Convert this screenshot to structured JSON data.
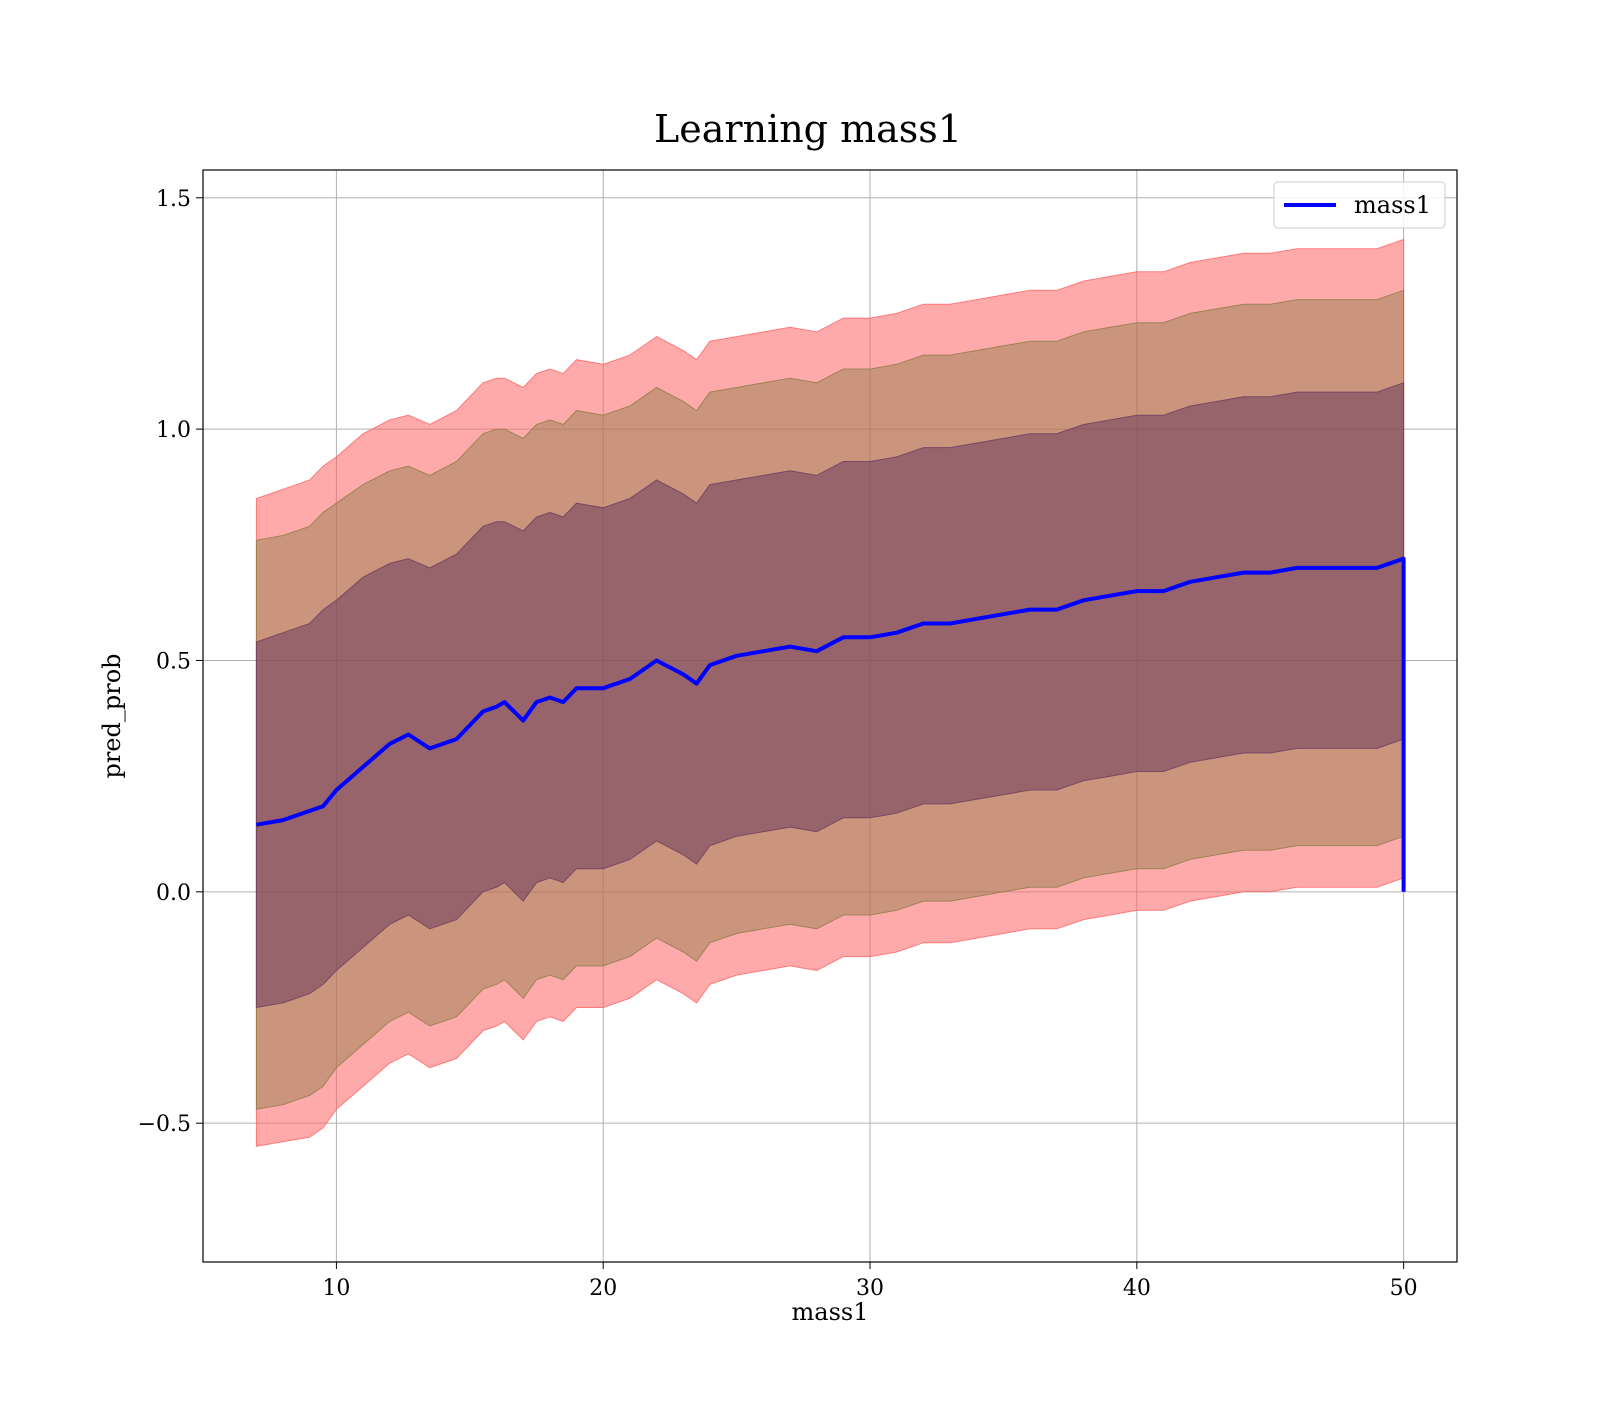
{
  "chart_data": {
    "type": "line",
    "title": "Learning mass1",
    "xlabel": "mass1",
    "ylabel": "pred_prob",
    "xlim": [
      5,
      52
    ],
    "ylim": [
      -0.8,
      1.56
    ],
    "xticks": [
      10,
      20,
      30,
      40,
      50
    ],
    "yticks": [
      -0.5,
      0.0,
      0.5,
      1.0,
      1.5
    ],
    "ytick_labels": [
      "−0.5",
      "0.0",
      "0.5",
      "1.0",
      "1.5"
    ],
    "grid": true,
    "legend_placement": "top-right",
    "x": [
      7,
      8,
      9,
      9.5,
      10,
      11,
      12,
      12.7,
      13.5,
      14.5,
      15.5,
      16,
      16.3,
      17,
      17.5,
      18,
      18.5,
      19,
      20,
      21,
      22,
      23,
      23.5,
      24,
      25,
      26,
      27,
      28,
      29,
      30,
      31,
      32,
      33,
      34,
      35,
      36,
      37,
      38,
      39,
      40,
      41,
      42,
      43,
      44,
      45,
      46,
      47,
      48,
      49,
      50
    ],
    "series": [
      {
        "name": "mass1",
        "color": "#0000ff",
        "values": [
          0.145,
          0.155,
          0.175,
          0.185,
          0.22,
          0.27,
          0.32,
          0.34,
          0.31,
          0.33,
          0.39,
          0.4,
          0.41,
          0.37,
          0.41,
          0.42,
          0.41,
          0.44,
          0.44,
          0.46,
          0.5,
          0.47,
          0.45,
          0.49,
          0.51,
          0.52,
          0.53,
          0.52,
          0.55,
          0.55,
          0.56,
          0.58,
          0.58,
          0.59,
          0.6,
          0.61,
          0.61,
          0.63,
          0.64,
          0.65,
          0.65,
          0.67,
          0.68,
          0.69,
          0.69,
          0.7,
          0.7,
          0.7,
          0.7,
          0.72
        ]
      }
    ],
    "bands": [
      {
        "color": "#ff6464",
        "opacity": 0.55,
        "upper": [
          0.85,
          0.87,
          0.89,
          0.92,
          0.94,
          0.99,
          1.02,
          1.03,
          1.01,
          1.04,
          1.1,
          1.11,
          1.11,
          1.09,
          1.12,
          1.13,
          1.12,
          1.15,
          1.14,
          1.16,
          1.2,
          1.17,
          1.15,
          1.19,
          1.2,
          1.21,
          1.22,
          1.21,
          1.24,
          1.24,
          1.25,
          1.27,
          1.27,
          1.28,
          1.29,
          1.3,
          1.3,
          1.32,
          1.33,
          1.34,
          1.34,
          1.36,
          1.37,
          1.38,
          1.38,
          1.39,
          1.39,
          1.39,
          1.39,
          1.41
        ],
        "lower": [
          -0.55,
          -0.54,
          -0.53,
          -0.51,
          -0.47,
          -0.42,
          -0.37,
          -0.35,
          -0.38,
          -0.36,
          -0.3,
          -0.29,
          -0.28,
          -0.32,
          -0.28,
          -0.27,
          -0.28,
          -0.25,
          -0.25,
          -0.23,
          -0.19,
          -0.22,
          -0.24,
          -0.2,
          -0.18,
          -0.17,
          -0.16,
          -0.17,
          -0.14,
          -0.14,
          -0.13,
          -0.11,
          -0.11,
          -0.1,
          -0.09,
          -0.08,
          -0.08,
          -0.06,
          -0.05,
          -0.04,
          -0.04,
          -0.02,
          -0.01,
          0.0,
          0.0,
          0.01,
          0.01,
          0.01,
          0.01,
          0.03
        ]
      },
      {
        "color": "#8c7d46",
        "opacity": 0.45,
        "upper": [
          0.76,
          0.77,
          0.79,
          0.82,
          0.84,
          0.88,
          0.91,
          0.92,
          0.9,
          0.93,
          0.99,
          1.0,
          1.0,
          0.98,
          1.01,
          1.02,
          1.01,
          1.04,
          1.03,
          1.05,
          1.09,
          1.06,
          1.04,
          1.08,
          1.09,
          1.1,
          1.11,
          1.1,
          1.13,
          1.13,
          1.14,
          1.16,
          1.16,
          1.17,
          1.18,
          1.19,
          1.19,
          1.21,
          1.22,
          1.23,
          1.23,
          1.25,
          1.26,
          1.27,
          1.27,
          1.28,
          1.28,
          1.28,
          1.28,
          1.3
        ],
        "lower": [
          -0.47,
          -0.46,
          -0.44,
          -0.42,
          -0.38,
          -0.33,
          -0.28,
          -0.26,
          -0.29,
          -0.27,
          -0.21,
          -0.2,
          -0.19,
          -0.23,
          -0.19,
          -0.18,
          -0.19,
          -0.16,
          -0.16,
          -0.14,
          -0.1,
          -0.13,
          -0.15,
          -0.11,
          -0.09,
          -0.08,
          -0.07,
          -0.08,
          -0.05,
          -0.05,
          -0.04,
          -0.02,
          -0.02,
          -0.01,
          0.0,
          0.01,
          0.01,
          0.03,
          0.04,
          0.05,
          0.05,
          0.07,
          0.08,
          0.09,
          0.09,
          0.1,
          0.1,
          0.1,
          0.1,
          0.12
        ]
      },
      {
        "color": "#6e3c5f",
        "opacity": 0.55,
        "upper": [
          0.54,
          0.56,
          0.58,
          0.61,
          0.63,
          0.68,
          0.71,
          0.72,
          0.7,
          0.73,
          0.79,
          0.8,
          0.8,
          0.78,
          0.81,
          0.82,
          0.81,
          0.84,
          0.83,
          0.85,
          0.89,
          0.86,
          0.84,
          0.88,
          0.89,
          0.9,
          0.91,
          0.9,
          0.93,
          0.93,
          0.94,
          0.96,
          0.96,
          0.97,
          0.98,
          0.99,
          0.99,
          1.01,
          1.02,
          1.03,
          1.03,
          1.05,
          1.06,
          1.07,
          1.07,
          1.08,
          1.08,
          1.08,
          1.08,
          1.1
        ],
        "lower": [
          -0.25,
          -0.24,
          -0.22,
          -0.2,
          -0.17,
          -0.12,
          -0.07,
          -0.05,
          -0.08,
          -0.06,
          0.0,
          0.01,
          0.02,
          -0.02,
          0.02,
          0.03,
          0.02,
          0.05,
          0.05,
          0.07,
          0.11,
          0.08,
          0.06,
          0.1,
          0.12,
          0.13,
          0.14,
          0.13,
          0.16,
          0.16,
          0.17,
          0.19,
          0.19,
          0.2,
          0.21,
          0.22,
          0.22,
          0.24,
          0.25,
          0.26,
          0.26,
          0.28,
          0.29,
          0.3,
          0.3,
          0.31,
          0.31,
          0.31,
          0.31,
          0.33
        ]
      }
    ]
  }
}
